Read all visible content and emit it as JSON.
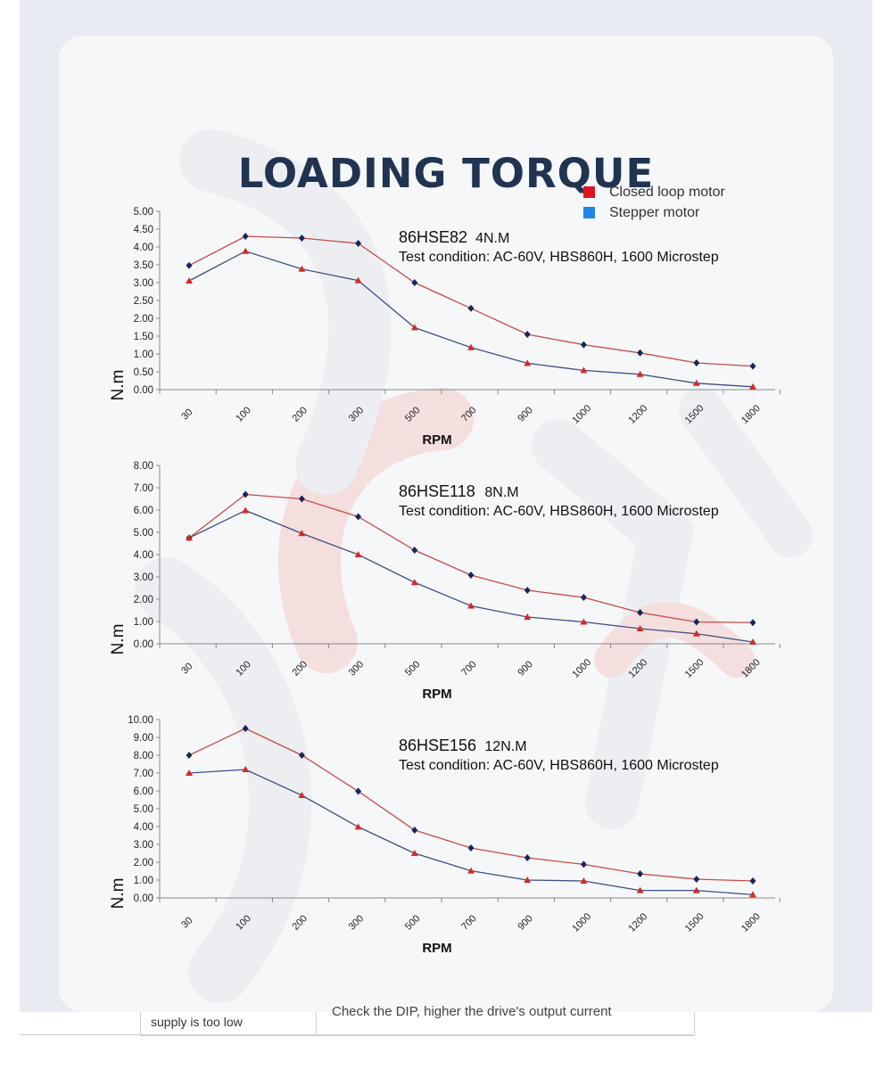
{
  "page": {
    "title": "LOADING TORQUE",
    "legend": [
      {
        "label": "Closed loop motor",
        "color": "#e0141e"
      },
      {
        "label": "Stepper motor",
        "color": "#1f86e8"
      }
    ],
    "footer": {
      "left_cell": "supply is too low",
      "right_cell": "Check the DIP, higher the drive's output current"
    }
  },
  "chart_data": [
    {
      "type": "line",
      "model": "86HSE82",
      "rating": "4N.M",
      "condition": "Test condition: AC-60V, HBS860H, 1600 Microstep",
      "categories": [
        "30",
        "100",
        "200",
        "300",
        "500",
        "700",
        "900",
        "1000",
        "1200",
        "1500",
        "1800"
      ],
      "series": [
        {
          "name": "Closed loop motor",
          "values": [
            3.48,
            4.3,
            4.25,
            4.1,
            3.0,
            2.28,
            1.55,
            1.26,
            1.03,
            0.75,
            0.66
          ]
        },
        {
          "name": "Stepper motor",
          "values": [
            3.05,
            3.88,
            3.38,
            3.06,
            1.74,
            1.18,
            0.74,
            0.54,
            0.43,
            0.18,
            0.08
          ]
        }
      ],
      "xlabel": "RPM",
      "ylabel": "N.m",
      "ylim": [
        0,
        5
      ],
      "yticks": [
        "0.00",
        "0.50",
        "1.00",
        "1.50",
        "2.00",
        "2.50",
        "3.00",
        "3.50",
        "4.00",
        "4.50",
        "5.00"
      ]
    },
    {
      "type": "line",
      "model": "86HSE118",
      "rating": "8N.M",
      "condition": "Test condition: AC-60V, HBS860H, 1600 Microstep",
      "categories": [
        "30",
        "100",
        "200",
        "300",
        "500",
        "700",
        "900",
        "1000",
        "1200",
        "1500",
        "1800"
      ],
      "series": [
        {
          "name": "Closed loop motor",
          "values": [
            4.75,
            6.7,
            6.5,
            5.7,
            4.2,
            3.08,
            2.4,
            2.08,
            1.4,
            0.98,
            0.95
          ]
        },
        {
          "name": "Stepper motor",
          "values": [
            4.75,
            5.98,
            4.95,
            4.0,
            2.75,
            1.7,
            1.2,
            0.98,
            0.68,
            0.45,
            0.08
          ]
        }
      ],
      "xlabel": "RPM",
      "ylabel": "N.m",
      "ylim": [
        0,
        8
      ],
      "yticks": [
        "0.00",
        "1.00",
        "2.00",
        "3.00",
        "4.00",
        "5.00",
        "6.00",
        "7.00",
        "8.00"
      ]
    },
    {
      "type": "line",
      "model": "86HSE156",
      "rating": "12N.M",
      "condition": "Test condition: AC-60V, HBS860H, 1600 Microstep",
      "categories": [
        "30",
        "100",
        "200",
        "300",
        "500",
        "700",
        "900",
        "1000",
        "1200",
        "1500",
        "1800"
      ],
      "series": [
        {
          "name": "Closed loop motor",
          "values": [
            8.0,
            9.5,
            8.0,
            5.98,
            3.8,
            2.8,
            2.25,
            1.88,
            1.35,
            1.05,
            0.95
          ]
        },
        {
          "name": "Stepper motor",
          "values": [
            7.0,
            7.2,
            5.75,
            3.98,
            2.5,
            1.52,
            1.0,
            0.95,
            0.42,
            0.42,
            0.18
          ]
        }
      ],
      "xlabel": "RPM",
      "ylabel": "N.m",
      "ylim": [
        0,
        10
      ],
      "yticks": [
        "0.00",
        "1.00",
        "2.00",
        "3.00",
        "4.00",
        "5.00",
        "6.00",
        "7.00",
        "8.00",
        "9.00",
        "10.00"
      ]
    }
  ]
}
